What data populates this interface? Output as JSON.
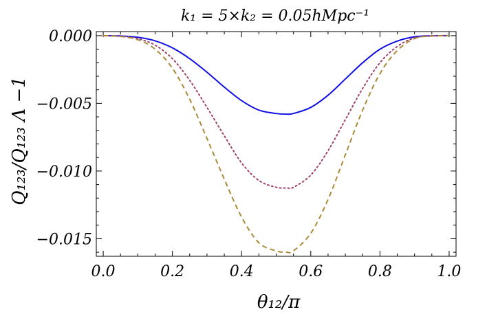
{
  "chart_data": {
    "type": "line",
    "title": "k₁ = 5×k₂ = 0.05hMpc⁻¹",
    "xlabel": "θ₁₂/π",
    "ylabel": "Q₁₂₃/Q₁₂₃ Λ −1",
    "xlim": [
      -0.02,
      1.02
    ],
    "ylim": [
      -0.0163,
      0.0003
    ],
    "grid": false,
    "legend": "none",
    "xticks": [
      {
        "value": 0.0,
        "label": "0.0"
      },
      {
        "value": 0.2,
        "label": "0.2"
      },
      {
        "value": 0.4,
        "label": "0.4"
      },
      {
        "value": 0.6,
        "label": "0.6"
      },
      {
        "value": 0.8,
        "label": "0.8"
      },
      {
        "value": 1.0,
        "label": "1.0"
      }
    ],
    "yticks": [
      {
        "value": 0.0,
        "label": "0.000"
      },
      {
        "value": -0.005,
        "label": "−0.005"
      },
      {
        "value": -0.01,
        "label": "−0.010"
      },
      {
        "value": -0.015,
        "label": "−0.015"
      }
    ],
    "x": [
      0.0,
      0.05,
      0.1,
      0.15,
      0.2,
      0.25,
      0.3,
      0.35,
      0.4,
      0.45,
      0.5,
      0.53,
      0.55,
      0.6,
      0.65,
      0.7,
      0.75,
      0.8,
      0.85,
      0.9,
      0.95,
      1.0
    ],
    "series": [
      {
        "color": "#1010e0",
        "style": "solid",
        "values": [
          0.0,
          -2e-05,
          -0.00012,
          -0.00038,
          -0.0009,
          -0.0017,
          -0.0027,
          -0.0038,
          -0.0048,
          -0.0055,
          -0.00575,
          -0.0058,
          -0.00575,
          -0.0053,
          -0.0044,
          -0.0032,
          -0.002,
          -0.001,
          -0.0004,
          -8e-05,
          -1e-05,
          0.0
        ]
      },
      {
        "color": "#a0406a",
        "style": "dotted",
        "values": [
          0.0,
          -4e-05,
          -0.00022,
          -0.0007,
          -0.0017,
          -0.0033,
          -0.0053,
          -0.0074,
          -0.0094,
          -0.0107,
          -0.0112,
          -0.01125,
          -0.0112,
          -0.0103,
          -0.0085,
          -0.0062,
          -0.0039,
          -0.002,
          -0.0008,
          -0.00016,
          -2e-05,
          0.0
        ]
      },
      {
        "color": "#a88a38",
        "style": "dashed",
        "values": [
          0.0,
          -6e-05,
          -0.0003,
          -0.001,
          -0.0024,
          -0.0047,
          -0.0076,
          -0.0106,
          -0.0134,
          -0.0153,
          -0.0159,
          -0.016,
          -0.0159,
          -0.0146,
          -0.0121,
          -0.0088,
          -0.0055,
          -0.0028,
          -0.0011,
          -0.00022,
          -3e-05,
          0.0
        ]
      }
    ]
  }
}
